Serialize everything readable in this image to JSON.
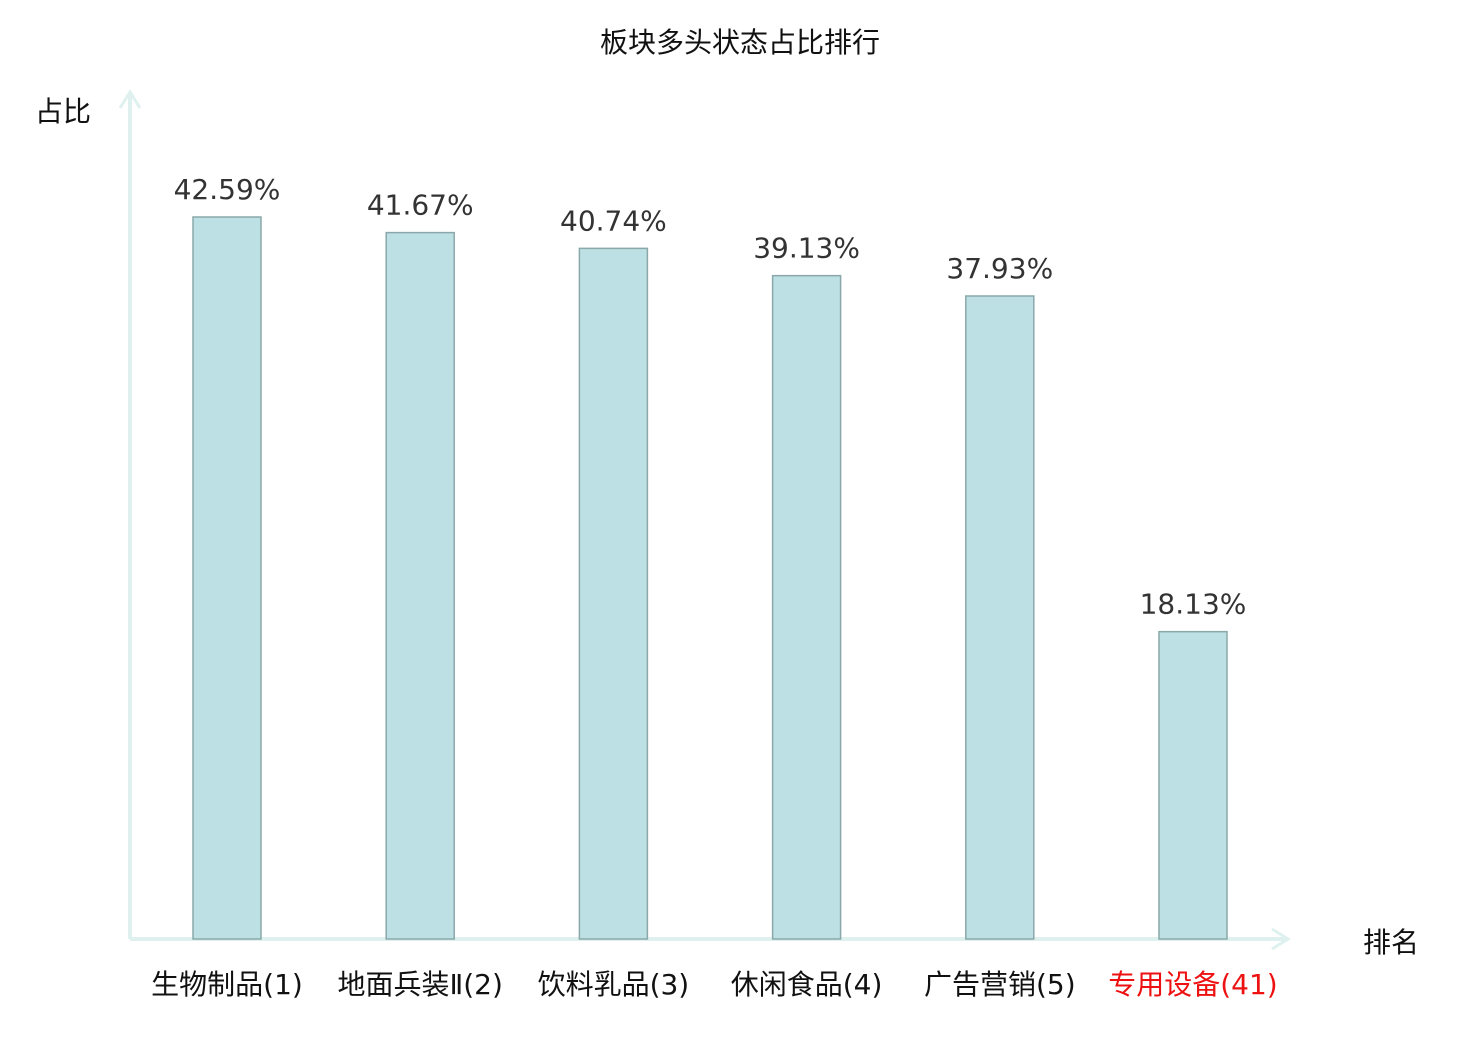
{
  "chart_data": {
    "type": "bar",
    "title": "板块多头状态占比排行",
    "xlabel": "排名",
    "ylabel": "占比",
    "categories": [
      "生物制品(1)",
      "地面兵装Ⅱ(2)",
      "饮料乳品(3)",
      "休闲食品(4)",
      "广告营销(5)",
      "专用设备(41)"
    ],
    "values": [
      42.59,
      41.67,
      40.74,
      39.13,
      37.93,
      18.13
    ],
    "data_labels": [
      "42.59%",
      "41.67%",
      "40.74%",
      "39.13%",
      "37.93%",
      "18.13%"
    ],
    "highlight_category_index": 5,
    "ylim": [
      0,
      42.59
    ],
    "grid": false,
    "colors": {
      "bar_fill": "#bce0e3",
      "bar_stroke": "#8aa8aa",
      "axis": "#dff1ef",
      "text": "#333333",
      "highlight_text": "#ee1111"
    }
  }
}
